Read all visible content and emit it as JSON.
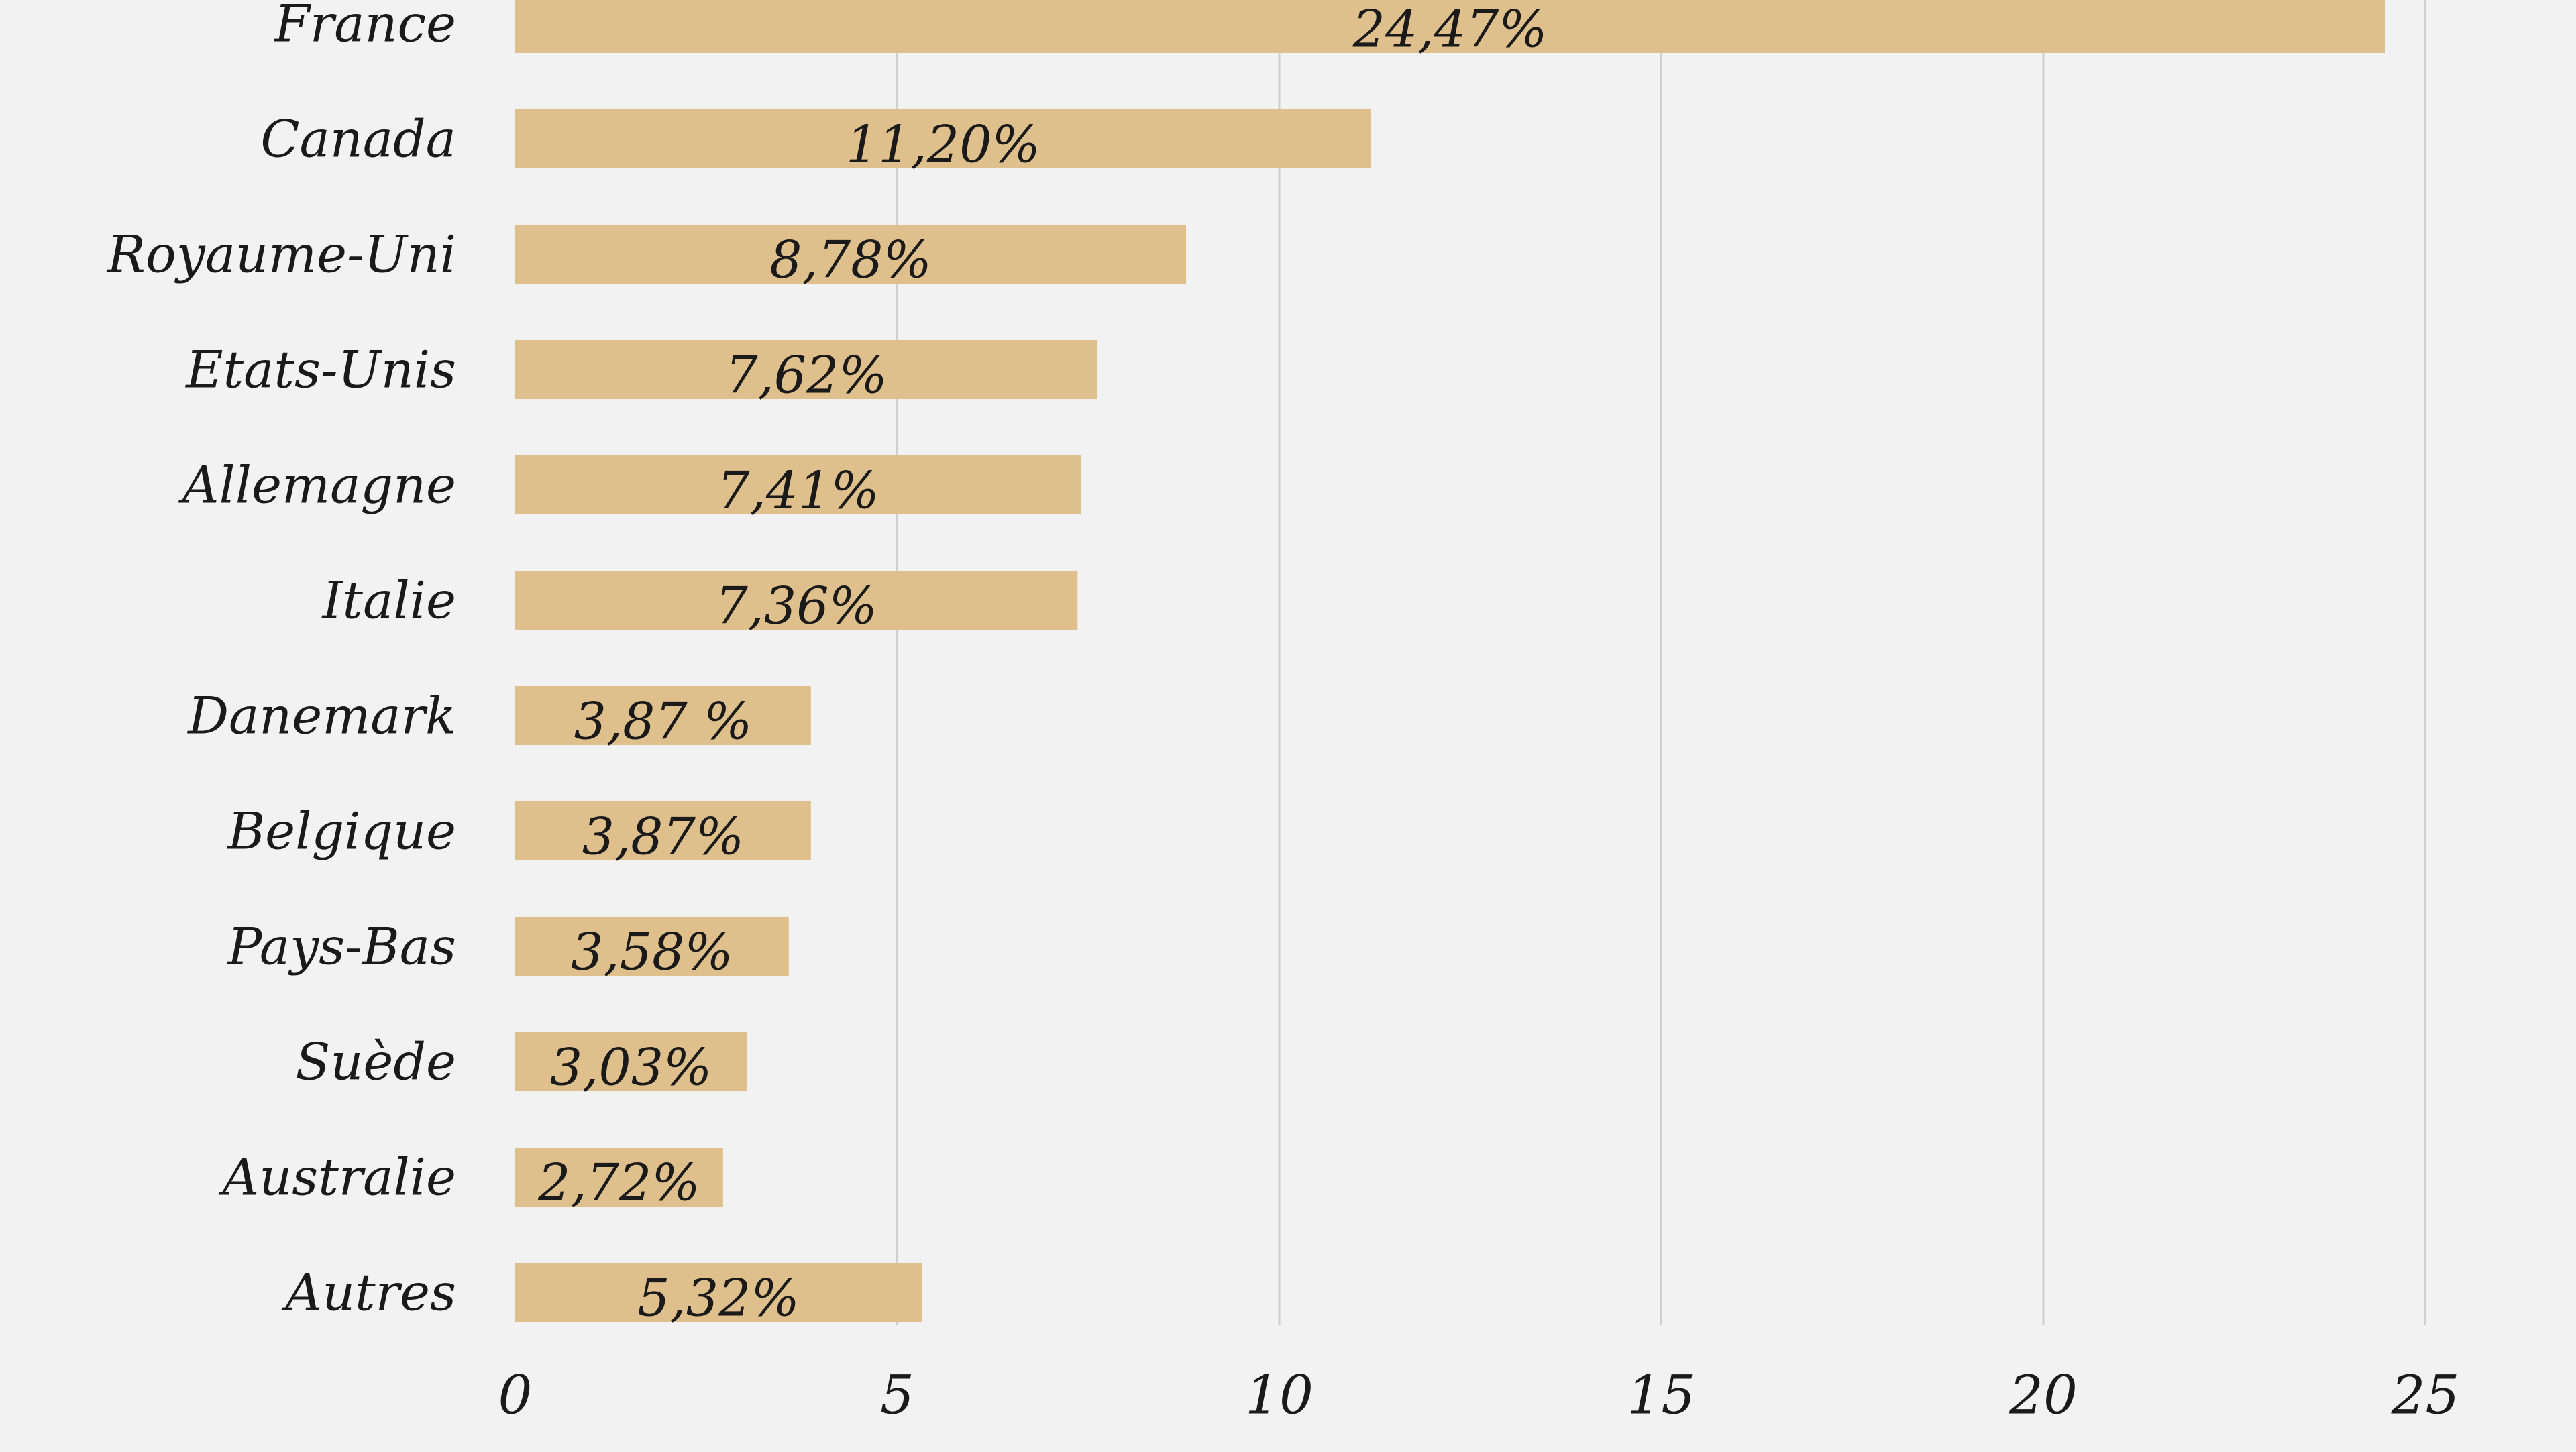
{
  "colors": {
    "background": "#f2f2f2",
    "bar": "#dfbf8b",
    "gridline": "#cfcfcf",
    "text": "#1a1a1a"
  },
  "chart_data": {
    "type": "bar",
    "orientation": "horizontal",
    "title": "",
    "xlabel": "",
    "ylabel": "",
    "xlim": [
      0,
      25
    ],
    "grid": true,
    "legend": "none",
    "ticks": [
      "0",
      "5",
      "10",
      "15",
      "20",
      "25"
    ],
    "tick_values": [
      0,
      5,
      10,
      15,
      20,
      25
    ],
    "categories": [
      "France",
      "Canada",
      "Royaume-Uni",
      "Etats-Unis",
      "Allemagne",
      "Italie",
      "Danemark",
      "Belgique",
      "Pays-Bas",
      "Suède",
      "Australie",
      "Autres"
    ],
    "values": [
      24.47,
      11.2,
      8.78,
      7.62,
      7.41,
      7.36,
      3.87,
      3.87,
      3.58,
      3.03,
      2.72,
      5.32
    ],
    "value_labels": [
      "24,47%",
      "11,20%",
      "8,78%",
      "7,62%",
      "7,41%",
      "7,36%",
      "3,87 %",
      "3,87%",
      "3,58%",
      "3,03%",
      "2,72%",
      "5,32%"
    ]
  }
}
